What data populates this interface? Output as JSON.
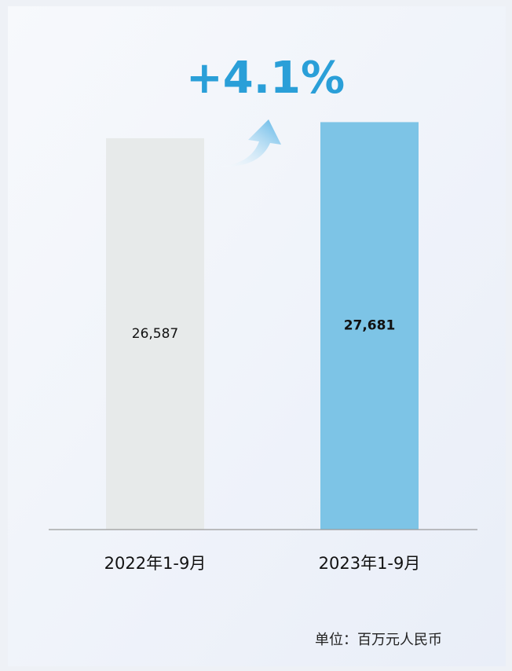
{
  "chart_data": {
    "type": "bar",
    "annotation": "+4.1%",
    "unit": "单位：百万元人民币",
    "categories": [
      "2022年1-9月",
      "2023年1-9月"
    ],
    "values": [
      26587,
      27681
    ],
    "value_labels": [
      "26,587",
      "27,681"
    ],
    "colors": [
      "#e7eaea",
      "#7dc4e6"
    ],
    "ylim": [
      0,
      30000
    ]
  }
}
